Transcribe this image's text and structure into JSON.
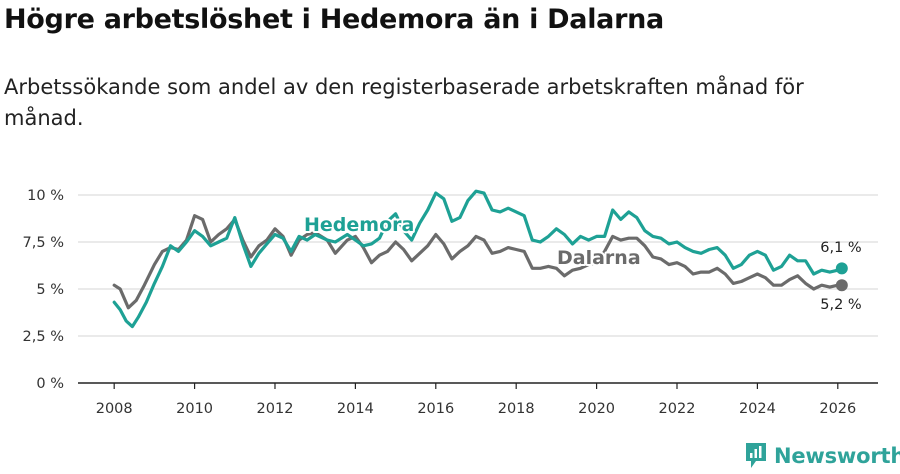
{
  "header": {
    "title": "Högre arbetslöshet i Hedemora än i Dalarna",
    "subtitle": "Arbetssökande som andel av den registerbaserade arbetskraften månad för månad."
  },
  "brand": {
    "name": "Newsworthy",
    "icon": "newsworthy-logo-icon",
    "color": "#2fa39a"
  },
  "chart_data": {
    "type": "line",
    "title": "Högre arbetslöshet i Hedemora än i Dalarna",
    "xlabel": "",
    "ylabel": "",
    "xlim": [
      2007.1,
      2027.0
    ],
    "ylim": [
      0,
      10
    ],
    "grid": true,
    "x_ticks": [
      2008,
      2010,
      2012,
      2014,
      2016,
      2018,
      2020,
      2022,
      2024,
      2026
    ],
    "x_tick_labels": [
      "2008",
      "2010",
      "2012",
      "2014",
      "2016",
      "2018",
      "2020",
      "2022",
      "2024",
      "2026"
    ],
    "y_ticks": [
      0,
      2.5,
      5,
      7.5,
      10
    ],
    "y_tick_labels": [
      "0 %",
      "2,5 %",
      "5 %",
      "7,5 %",
      "10 %"
    ],
    "series": [
      {
        "name": "Dalarna",
        "label": "Dalarna",
        "color": "#6b6b6b",
        "end_label": "5,2 %",
        "end_value": 5.2,
        "points": [
          [
            2008.0,
            5.2
          ],
          [
            2008.15,
            5.0
          ],
          [
            2008.35,
            4.0
          ],
          [
            2008.55,
            4.4
          ],
          [
            2008.75,
            5.2
          ],
          [
            2009.0,
            6.3
          ],
          [
            2009.2,
            7.0
          ],
          [
            2009.4,
            7.2
          ],
          [
            2009.6,
            7.1
          ],
          [
            2009.8,
            7.6
          ],
          [
            2010.0,
            8.9
          ],
          [
            2010.2,
            8.7
          ],
          [
            2010.4,
            7.5
          ],
          [
            2010.6,
            7.9
          ],
          [
            2010.8,
            8.2
          ],
          [
            2011.0,
            8.7
          ],
          [
            2011.2,
            7.6
          ],
          [
            2011.4,
            6.7
          ],
          [
            2011.6,
            7.3
          ],
          [
            2011.8,
            7.6
          ],
          [
            2012.0,
            8.2
          ],
          [
            2012.2,
            7.8
          ],
          [
            2012.4,
            6.8
          ],
          [
            2012.6,
            7.6
          ],
          [
            2012.8,
            7.9
          ],
          [
            2013.0,
            8.0
          ],
          [
            2013.3,
            7.6
          ],
          [
            2013.5,
            6.9
          ],
          [
            2013.8,
            7.6
          ],
          [
            2014.0,
            7.8
          ],
          [
            2014.2,
            7.2
          ],
          [
            2014.4,
            6.4
          ],
          [
            2014.6,
            6.8
          ],
          [
            2014.8,
            7.0
          ],
          [
            2015.0,
            7.5
          ],
          [
            2015.2,
            7.1
          ],
          [
            2015.4,
            6.5
          ],
          [
            2015.6,
            6.9
          ],
          [
            2015.8,
            7.3
          ],
          [
            2016.0,
            7.9
          ],
          [
            2016.2,
            7.4
          ],
          [
            2016.4,
            6.6
          ],
          [
            2016.6,
            7.0
          ],
          [
            2016.8,
            7.3
          ],
          [
            2017.0,
            7.8
          ],
          [
            2017.2,
            7.6
          ],
          [
            2017.4,
            6.9
          ],
          [
            2017.6,
            7.0
          ],
          [
            2017.8,
            7.2
          ],
          [
            2018.0,
            7.1
          ],
          [
            2018.2,
            7.0
          ],
          [
            2018.4,
            6.1
          ],
          [
            2018.6,
            6.1
          ],
          [
            2018.8,
            6.2
          ],
          [
            2019.0,
            6.1
          ],
          [
            2019.2,
            5.7
          ],
          [
            2019.4,
            6.0
          ],
          [
            2019.6,
            6.1
          ],
          [
            2019.8,
            6.3
          ],
          [
            2020.0,
            6.4
          ],
          [
            2020.2,
            7.0
          ],
          [
            2020.4,
            7.8
          ],
          [
            2020.6,
            7.6
          ],
          [
            2020.8,
            7.7
          ],
          [
            2021.0,
            7.7
          ],
          [
            2021.2,
            7.3
          ],
          [
            2021.4,
            6.7
          ],
          [
            2021.6,
            6.6
          ],
          [
            2021.8,
            6.3
          ],
          [
            2022.0,
            6.4
          ],
          [
            2022.2,
            6.2
          ],
          [
            2022.4,
            5.8
          ],
          [
            2022.6,
            5.9
          ],
          [
            2022.8,
            5.9
          ],
          [
            2023.0,
            6.1
          ],
          [
            2023.2,
            5.8
          ],
          [
            2023.4,
            5.3
          ],
          [
            2023.6,
            5.4
          ],
          [
            2023.8,
            5.6
          ],
          [
            2024.0,
            5.8
          ],
          [
            2024.2,
            5.6
          ],
          [
            2024.4,
            5.2
          ],
          [
            2024.6,
            5.2
          ],
          [
            2024.8,
            5.5
          ],
          [
            2025.0,
            5.7
          ],
          [
            2025.2,
            5.3
          ],
          [
            2025.4,
            5.0
          ],
          [
            2025.6,
            5.2
          ],
          [
            2025.8,
            5.1
          ],
          [
            2026.0,
            5.2
          ],
          [
            2026.1,
            5.2
          ]
        ]
      },
      {
        "name": "Hedemora",
        "label": "Hedemora",
        "color": "#1ea195",
        "end_label": "6,1 %",
        "end_value": 6.1,
        "points": [
          [
            2008.0,
            4.3
          ],
          [
            2008.15,
            3.9
          ],
          [
            2008.3,
            3.3
          ],
          [
            2008.45,
            3.0
          ],
          [
            2008.6,
            3.5
          ],
          [
            2008.8,
            4.3
          ],
          [
            2009.0,
            5.3
          ],
          [
            2009.2,
            6.2
          ],
          [
            2009.4,
            7.3
          ],
          [
            2009.6,
            7.0
          ],
          [
            2009.8,
            7.5
          ],
          [
            2010.0,
            8.1
          ],
          [
            2010.2,
            7.8
          ],
          [
            2010.4,
            7.3
          ],
          [
            2010.6,
            7.5
          ],
          [
            2010.8,
            7.7
          ],
          [
            2011.0,
            8.8
          ],
          [
            2011.2,
            7.4
          ],
          [
            2011.4,
            6.2
          ],
          [
            2011.6,
            6.9
          ],
          [
            2011.8,
            7.4
          ],
          [
            2012.0,
            7.9
          ],
          [
            2012.2,
            7.7
          ],
          [
            2012.4,
            7.0
          ],
          [
            2012.6,
            7.8
          ],
          [
            2012.8,
            7.6
          ],
          [
            2013.0,
            7.9
          ],
          [
            2013.3,
            7.6
          ],
          [
            2013.5,
            7.5
          ],
          [
            2013.8,
            7.9
          ],
          [
            2014.0,
            7.6
          ],
          [
            2014.2,
            7.3
          ],
          [
            2014.4,
            7.4
          ],
          [
            2014.6,
            7.7
          ],
          [
            2014.8,
            8.6
          ],
          [
            2015.0,
            9.0
          ],
          [
            2015.2,
            8.1
          ],
          [
            2015.4,
            7.6
          ],
          [
            2015.6,
            8.5
          ],
          [
            2015.8,
            9.2
          ],
          [
            2016.0,
            10.1
          ],
          [
            2016.2,
            9.8
          ],
          [
            2016.4,
            8.6
          ],
          [
            2016.6,
            8.8
          ],
          [
            2016.8,
            9.7
          ],
          [
            2017.0,
            10.2
          ],
          [
            2017.2,
            10.1
          ],
          [
            2017.4,
            9.2
          ],
          [
            2017.6,
            9.1
          ],
          [
            2017.8,
            9.3
          ],
          [
            2018.0,
            9.1
          ],
          [
            2018.2,
            8.9
          ],
          [
            2018.4,
            7.6
          ],
          [
            2018.6,
            7.5
          ],
          [
            2018.8,
            7.8
          ],
          [
            2019.0,
            8.2
          ],
          [
            2019.2,
            7.9
          ],
          [
            2019.4,
            7.4
          ],
          [
            2019.6,
            7.8
          ],
          [
            2019.8,
            7.6
          ],
          [
            2020.0,
            7.8
          ],
          [
            2020.2,
            7.8
          ],
          [
            2020.4,
            9.2
          ],
          [
            2020.6,
            8.7
          ],
          [
            2020.8,
            9.1
          ],
          [
            2021.0,
            8.8
          ],
          [
            2021.2,
            8.1
          ],
          [
            2021.4,
            7.8
          ],
          [
            2021.6,
            7.7
          ],
          [
            2021.8,
            7.4
          ],
          [
            2022.0,
            7.5
          ],
          [
            2022.2,
            7.2
          ],
          [
            2022.4,
            7.0
          ],
          [
            2022.6,
            6.9
          ],
          [
            2022.8,
            7.1
          ],
          [
            2023.0,
            7.2
          ],
          [
            2023.2,
            6.8
          ],
          [
            2023.4,
            6.1
          ],
          [
            2023.6,
            6.3
          ],
          [
            2023.8,
            6.8
          ],
          [
            2024.0,
            7.0
          ],
          [
            2024.2,
            6.8
          ],
          [
            2024.4,
            6.0
          ],
          [
            2024.6,
            6.2
          ],
          [
            2024.8,
            6.8
          ],
          [
            2025.0,
            6.5
          ],
          [
            2025.2,
            6.5
          ],
          [
            2025.4,
            5.8
          ],
          [
            2025.6,
            6.0
          ],
          [
            2025.8,
            5.9
          ],
          [
            2026.0,
            6.0
          ],
          [
            2026.1,
            6.1
          ]
        ]
      }
    ]
  }
}
